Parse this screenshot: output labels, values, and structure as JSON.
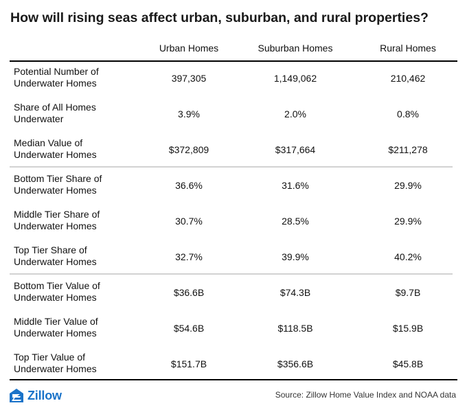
{
  "title": "How will rising seas affect urban, suburban, and rural properties?",
  "chart_data": {
    "type": "table",
    "title": "How will rising seas affect urban, suburban, and rural properties?",
    "columns": [
      "Urban Homes",
      "Suburban Homes",
      "Rural Homes"
    ],
    "rows": [
      {
        "label": "Potential Number of Underwater Homes",
        "values": [
          "397,305",
          "1,149,062",
          "210,462"
        ]
      },
      {
        "label": "Share of All Homes Underwater",
        "values": [
          "3.9%",
          "2.0%",
          "0.8%"
        ]
      },
      {
        "label": "Median Value of Underwater Homes",
        "values": [
          "$372,809",
          "$317,664",
          "$211,278"
        ]
      },
      {
        "label": "Bottom Tier Share of Underwater Homes",
        "values": [
          "36.6%",
          "31.6%",
          "29.9%"
        ]
      },
      {
        "label": "Middle Tier Share of Underwater Homes",
        "values": [
          "30.7%",
          "28.5%",
          "29.9%"
        ]
      },
      {
        "label": "Top Tier Share of Underwater Homes",
        "values": [
          "32.7%",
          "39.9%",
          "40.2%"
        ]
      },
      {
        "label": "Bottom Tier Value of Underwater Homes",
        "values": [
          "$36.6B",
          "$74.3B",
          "$9.7B"
        ]
      },
      {
        "label": "Middle Tier Value of Underwater Homes",
        "values": [
          "$54.6B",
          "$118.5B",
          "$15.9B"
        ]
      },
      {
        "label": "Top Tier Value of Underwater Homes",
        "values": [
          "$151.7B",
          "$356.6B",
          "$45.8B"
        ]
      }
    ]
  },
  "footer": {
    "logo_text": "Zillow",
    "source": "Source: Zillow Home Value Index and NOAA data"
  },
  "colors": {
    "brand": "#1a73c9",
    "rule": "#000000",
    "group_rule": "#d2d2d2"
  },
  "icons": {
    "logo": "zillow-logo-icon"
  }
}
